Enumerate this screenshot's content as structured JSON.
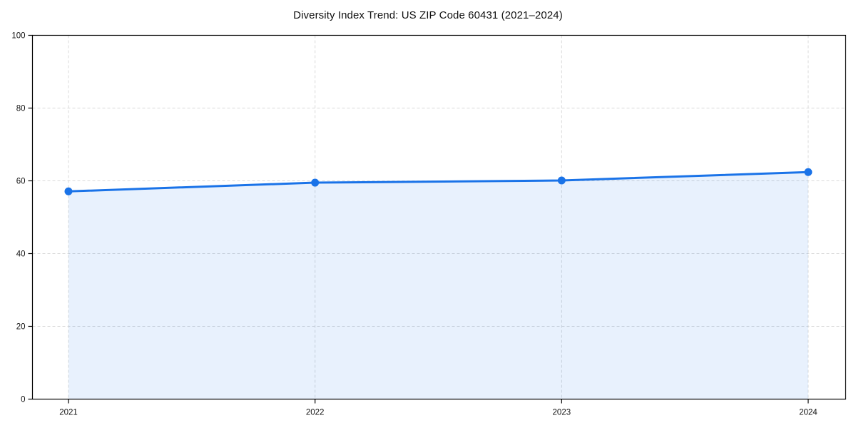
{
  "chart": {
    "title": "Diversity Index Trend: US ZIP Code 60431 (2021–2024)"
  },
  "chart_data": {
    "type": "area",
    "title": "Diversity Index Trend: US ZIP Code 60431 (2021–2024)",
    "x": [
      2021,
      2022,
      2023,
      2024
    ],
    "categories": [
      "2021",
      "2022",
      "2023",
      "2024"
    ],
    "series": [
      {
        "name": "Diversity Index",
        "values": [
          57.1,
          59.5,
          60.1,
          62.4
        ]
      }
    ],
    "xlabel": "",
    "ylabel": "",
    "ylim": [
      0,
      100
    ],
    "yticks": [
      0,
      20,
      40,
      60,
      80,
      100
    ],
    "grid": true,
    "grid_style": "dashed",
    "legend_position": "none",
    "marker": "circle",
    "colors": {
      "line": "#1a73e8",
      "marker": "#1a73e8",
      "fill": "rgba(26,115,232,0.10)",
      "grid": "#d9d9d9",
      "axis": "#000000",
      "text": "#111111",
      "background": "#ffffff"
    }
  }
}
